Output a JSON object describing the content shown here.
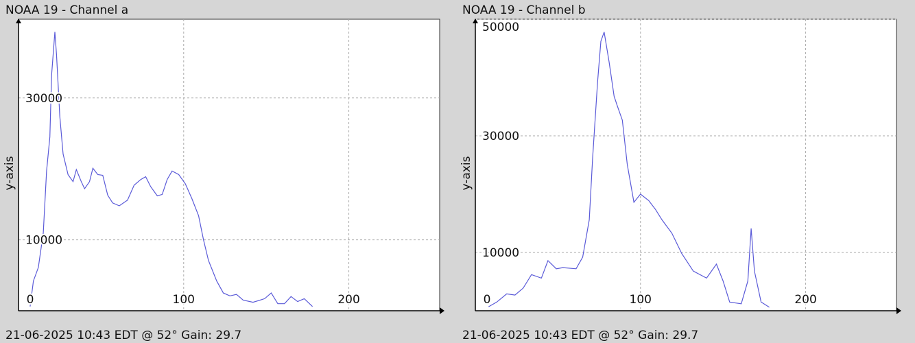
{
  "chart_data": [
    {
      "type": "line",
      "title": "NOAA 19 - Channel a",
      "ylabel": "y-axis",
      "caption": "21-06-2025 10:43 EDT @ 52° Gain: 29.7",
      "x": [
        7,
        9,
        12,
        15,
        17,
        19,
        20,
        22,
        23,
        25,
        27,
        30,
        33,
        35,
        38,
        40,
        43,
        45,
        48,
        51,
        54,
        57,
        61,
        66,
        70,
        74,
        77,
        80,
        84,
        87,
        90,
        93,
        97,
        101,
        105,
        109,
        112,
        115,
        120,
        124,
        128,
        132,
        136,
        142,
        149,
        153,
        157,
        161,
        165,
        169,
        173,
        178
      ],
      "series": [
        {
          "name": "Channel a",
          "color": "#5a5ad8",
          "values": [
            600,
            4200,
            6100,
            11000,
            19700,
            24500,
            33200,
            39300,
            36100,
            27400,
            22100,
            19200,
            18200,
            19900,
            18200,
            17200,
            18200,
            20100,
            19200,
            19100,
            16300,
            15200,
            14800,
            15600,
            17700,
            18500,
            18900,
            17500,
            16200,
            16400,
            18500,
            19700,
            19200,
            17900,
            15800,
            13400,
            10000,
            7100,
            4200,
            2500,
            2100,
            2300,
            1500,
            1200,
            1700,
            2500,
            1000,
            1000,
            2000,
            1300,
            1700,
            600
          ]
        }
      ],
      "xlim": [
        0,
        255
      ],
      "xticks": [
        0,
        100,
        200
      ],
      "ylim": [
        0,
        41100
      ],
      "yticks": [
        10000,
        30000
      ],
      "grid": true
    },
    {
      "type": "line",
      "title": "NOAA 19 - Channel b",
      "ylabel": "y-axis",
      "caption": "21-06-2025 10:43 EDT @ 52° Gain: 29.7",
      "x": [
        8,
        13,
        19,
        24,
        29,
        34,
        40,
        44,
        49,
        53,
        61,
        65,
        69,
        71,
        74,
        76,
        78,
        81,
        84,
        86,
        89,
        92,
        96,
        100,
        105,
        109,
        113,
        119,
        125,
        132,
        140,
        146,
        150,
        154,
        161,
        165,
        167,
        169,
        173,
        178
      ],
      "series": [
        {
          "name": "Channel b",
          "color": "#5a5ad8",
          "values": [
            700,
            1500,
            2900,
            2700,
            3900,
            6200,
            5600,
            8600,
            7200,
            7400,
            7200,
            9200,
            15600,
            26200,
            39200,
            46200,
            47800,
            42700,
            36800,
            35100,
            32700,
            25100,
            18600,
            20000,
            18900,
            17400,
            15600,
            13300,
            9800,
            6800,
            5600,
            8000,
            5100,
            1500,
            1200,
            5100,
            14100,
            6800,
            1500,
            600
          ]
        }
      ],
      "xlim": [
        0,
        255
      ],
      "xticks": [
        0,
        100,
        200
      ],
      "ylim": [
        0,
        50000
      ],
      "yticks": [
        10000,
        30000,
        50000
      ],
      "grid": true
    }
  ]
}
